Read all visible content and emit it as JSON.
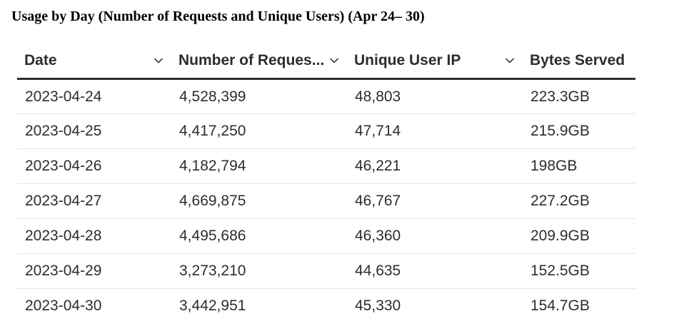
{
  "title": "Usage by Day (Number of Requests and Unique Users) (Apr 24– 30)",
  "columns": [
    {
      "label": "Date",
      "icon": "chevron-down-icon"
    },
    {
      "label": "Number of Reques...",
      "icon": "chevron-down-icon"
    },
    {
      "label": "Unique User IP",
      "icon": "chevron-down-icon"
    },
    {
      "label": "Bytes Served"
    }
  ],
  "rows": [
    {
      "date": "2023-04-24",
      "requests": "4,528,399",
      "unique_ips": "48,803",
      "bytes": "223.3GB"
    },
    {
      "date": "2023-04-25",
      "requests": "4,417,250",
      "unique_ips": "47,714",
      "bytes": "215.9GB"
    },
    {
      "date": "2023-04-26",
      "requests": "4,182,794",
      "unique_ips": "46,221",
      "bytes": "198GB"
    },
    {
      "date": "2023-04-27",
      "requests": "4,669,875",
      "unique_ips": "46,767",
      "bytes": "227.2GB"
    },
    {
      "date": "2023-04-28",
      "requests": "4,495,686",
      "unique_ips": "46,360",
      "bytes": "209.9GB"
    },
    {
      "date": "2023-04-29",
      "requests": "3,273,210",
      "unique_ips": "44,635",
      "bytes": "152.5GB"
    },
    {
      "date": "2023-04-30",
      "requests": "3,442,951",
      "unique_ips": "45,330",
      "bytes": "154.7GB"
    }
  ]
}
